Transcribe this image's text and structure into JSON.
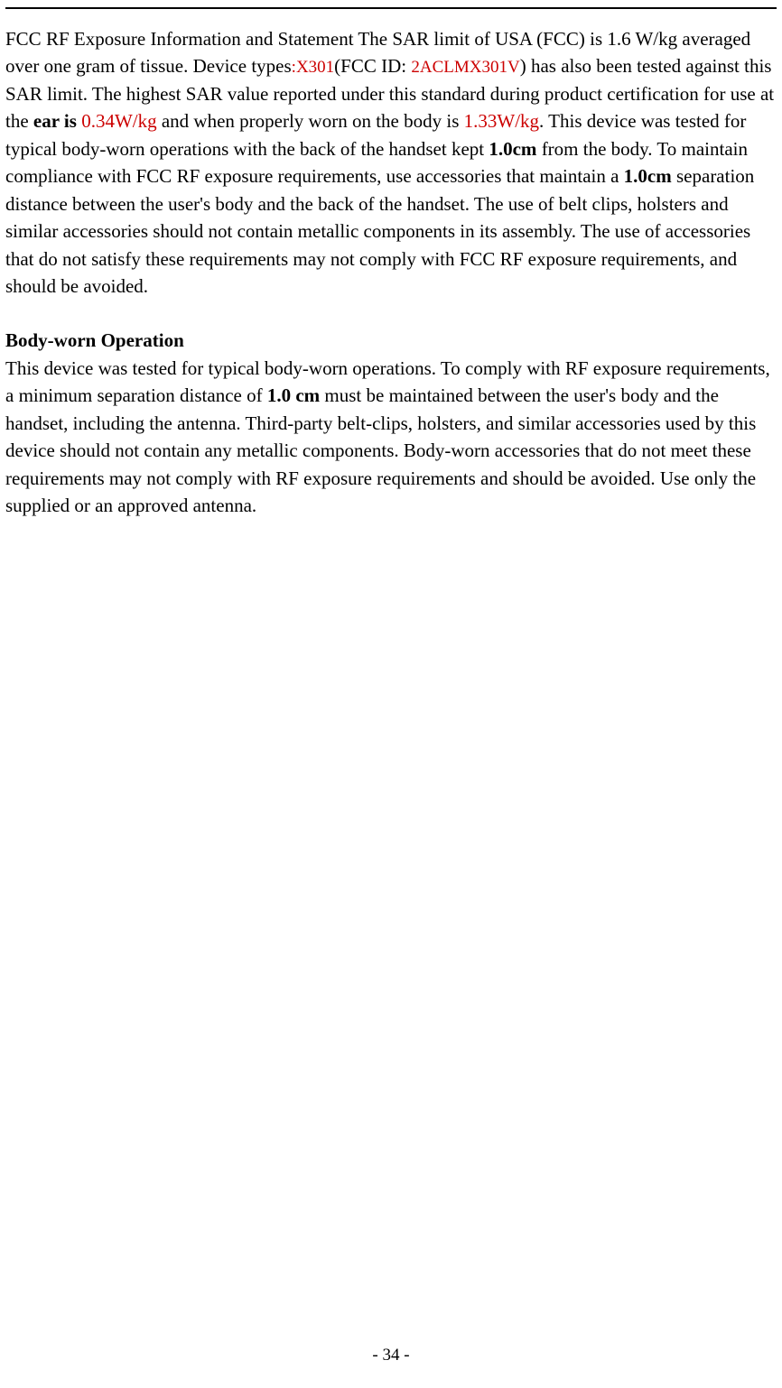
{
  "colors": {
    "text": "#000000",
    "red_text": "#cc0000",
    "background": "#ffffff",
    "rule": "#000000"
  },
  "typography": {
    "body_font_family": "Times New Roman",
    "body_fontsize_pt": 16,
    "line_height": 1.45
  },
  "paragraph1": {
    "seg1": "FCC RF Exposure Information and Statement The SAR limit of USA (FCC) is 1.6 W/kg averaged over one gram of tissue. Device types",
    "device_type_prefix": ":",
    "device_type": "X301",
    "seg2a": "(FCC ID: ",
    "fcc_id": "2ACLMX301V",
    "seg2b": ") has also been tested against this SAR limit. The highest SAR value reported under this standard during product certification for use at the ",
    "ear_is": "ear is ",
    "ear_value": "0.34W/kg",
    "seg3": " and when properly worn on the body is ",
    "body_value": "1.33W/kg",
    "seg4": ". This device was tested for typical body-worn operations with the back of the handset kept ",
    "dist1": "1.0cm",
    "seg5": " from the body. To maintain compliance with FCC RF exposure requirements, use accessories that maintain a ",
    "dist2": "1.0cm",
    "seg6": " separation distance between the user's body and the back of the handset. The use of belt clips, holsters and similar accessories should not contain metallic components in its assembly. The use of accessories that do not satisfy these requirements may not comply with FCC RF exposure requirements, and should be avoided."
  },
  "heading2": "Body-worn Operation",
  "paragraph2": {
    "seg1": "This device was tested for typical body-worn operations. To comply with RF exposure requirements, a minimum separation distance of ",
    "dist": "1.0 cm",
    "seg2": " must be maintained between the user's body and the handset, including the antenna. Third-party belt-clips, holsters, and similar accessories used by this device should not contain any metallic components. Body-worn accessories that do not meet these requirements may not comply with RF exposure requirements and should be avoided. Use only the supplied or an approved antenna."
  },
  "page_number": "- 34 -"
}
